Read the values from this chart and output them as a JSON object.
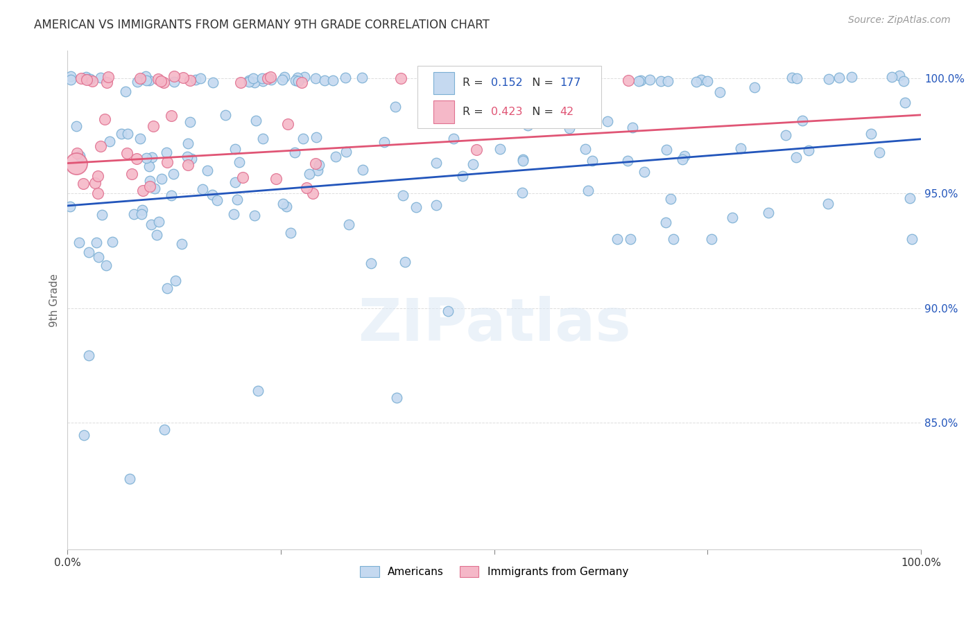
{
  "title": "AMERICAN VS IMMIGRANTS FROM GERMANY 9TH GRADE CORRELATION CHART",
  "source": "Source: ZipAtlas.com",
  "ylabel": "9th Grade",
  "xlim": [
    0.0,
    1.0
  ],
  "ylim": [
    0.795,
    1.012
  ],
  "american_color": "#c5d9f0",
  "american_edge": "#7bafd4",
  "germany_color": "#f5b8c8",
  "germany_edge": "#e07090",
  "american_line_color": "#2255bb",
  "germany_line_color": "#e05575",
  "legend_r_american": "0.152",
  "legend_n_american": "177",
  "legend_r_germany": "0.423",
  "legend_n_germany": "42",
  "background_color": "#ffffff",
  "grid_color": "#dddddd",
  "watermark": "ZIPatlas",
  "am_line_x0": 0.0,
  "am_line_y0": 0.9445,
  "am_line_x1": 1.0,
  "am_line_y1": 0.9735,
  "ge_line_x0": 0.0,
  "ge_line_y0": 0.963,
  "ge_line_x1": 1.0,
  "ge_line_y1": 0.984
}
